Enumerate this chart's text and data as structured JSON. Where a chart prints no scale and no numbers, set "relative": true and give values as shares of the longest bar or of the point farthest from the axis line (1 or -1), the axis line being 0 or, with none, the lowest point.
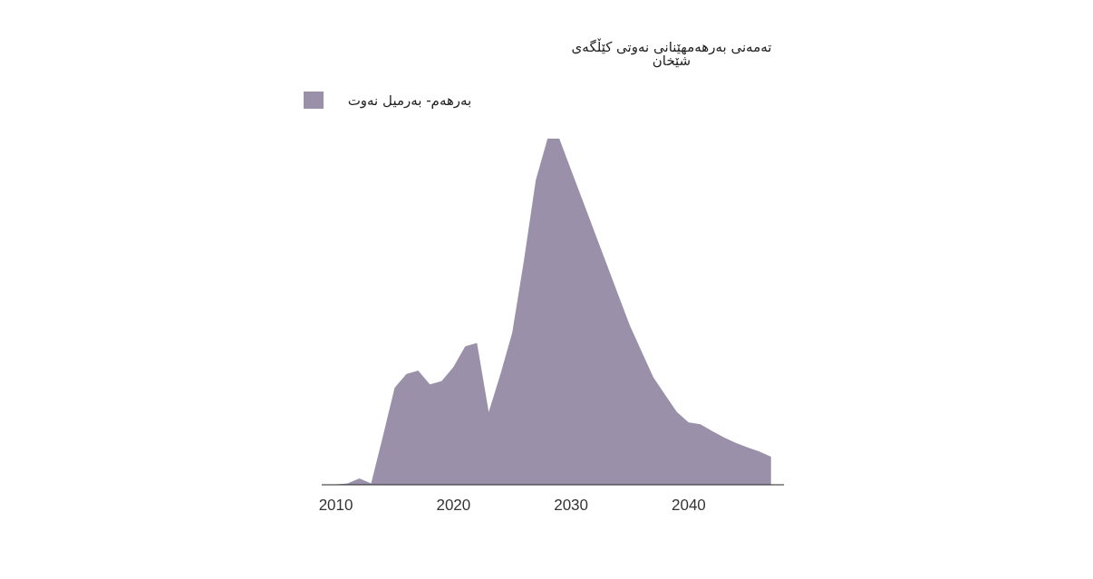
{
  "chart_data": {
    "type": "area",
    "title": "تەمەنی بەرهەمهێنانی نەوتی کێڵگەی شێخان",
    "relative": true,
    "legend": "top left",
    "xlim": [
      2008.8,
      2048.1
    ],
    "xticks": [
      2010,
      2020,
      2030,
      2040
    ],
    "x": [
      2010,
      2011,
      2012,
      2013,
      2014,
      2015,
      2016,
      2017,
      2018,
      2019,
      2020,
      2021,
      2022,
      2023,
      2024,
      2025,
      2026,
      2027,
      2028,
      2029,
      2030,
      2031,
      2032,
      2033,
      2034,
      2035,
      2036,
      2037,
      2038,
      2039,
      2040,
      2041,
      2042,
      2043,
      2044,
      2045,
      2046,
      2047
    ],
    "series": [
      {
        "name": "بەرهەم- بەرمیل نەوت",
        "color": "#9a90a9",
        "values": [
          0,
          0.004,
          0.018,
          0.004,
          0.14,
          0.28,
          0.32,
          0.33,
          0.29,
          0.3,
          0.34,
          0.4,
          0.41,
          0.21,
          0.32,
          0.44,
          0.65,
          0.88,
          1,
          1,
          0.91,
          0.82,
          0.73,
          0.64,
          0.55,
          0.46,
          0.385,
          0.31,
          0.26,
          0.21,
          0.18,
          0.175,
          0.155,
          0.137,
          0.121,
          0.108,
          0.096,
          0.081
        ]
      }
    ]
  }
}
